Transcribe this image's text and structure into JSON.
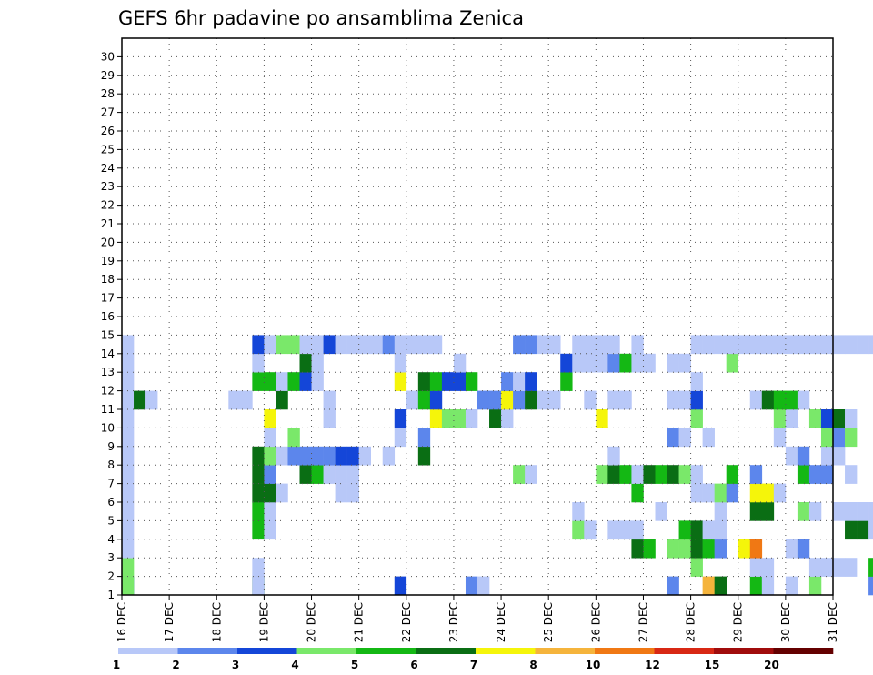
{
  "chart_data": {
    "type": "heatmap",
    "title": "GEFS 6hr padavine po ansamblima Zenica",
    "xlabel": "",
    "ylabel": "",
    "x_tick_labels": [
      "16 DEC",
      "17 DEC",
      "18 DEC",
      "19 DEC",
      "20 DEC",
      "21 DEC",
      "22 DEC",
      "23 DEC",
      "24 DEC",
      "25 DEC",
      "26 DEC",
      "27 DEC",
      "28 DEC",
      "29 DEC",
      "30 DEC",
      "31 DEC"
    ],
    "y_tick_labels": [
      "1",
      "2",
      "3",
      "4",
      "5",
      "6",
      "7",
      "8",
      "9",
      "10",
      "11",
      "12",
      "13",
      "14",
      "15",
      "16",
      "17",
      "18",
      "19",
      "20",
      "21",
      "22",
      "23",
      "24",
      "25",
      "26",
      "27",
      "28",
      "29",
      "30"
    ],
    "x_range_days": [
      16,
      31
    ],
    "steps_per_day": 4,
    "members": 30,
    "grid": true,
    "colorbar": {
      "position": "bottom",
      "levels": [
        "1",
        "2",
        "3",
        "4",
        "5",
        "6",
        "7",
        "8",
        "10",
        "12",
        "15",
        "20"
      ],
      "colors": [
        "#b8c8f8",
        "#5c86ec",
        "#1446d8",
        "#7ae86a",
        "#14b814",
        "#0a6e14",
        "#f5f50a",
        "#f5b43c",
        "#f07814",
        "#d82814",
        "#a00c0c",
        "#640000"
      ]
    },
    "cells": [
      [
        0,
        0,
        2
      ],
      [
        0,
        11,
        5
      ],
      [
        0,
        23,
        2
      ],
      [
        0,
        29,
        1
      ],
      [
        0,
        30,
        0
      ],
      [
        0,
        49,
        7
      ],
      [
        0,
        50,
        5
      ],
      [
        0,
        53,
        4
      ],
      [
        0,
        54,
        0
      ],
      [
        0,
        56,
        0
      ],
      [
        0,
        58,
        3
      ],
      [
        0,
        63,
        1
      ],
      [
        0,
        64,
        2
      ],
      [
        0,
        65,
        2
      ],
      [
        0,
        66,
        0
      ],
      [
        0,
        68,
        0
      ],
      [
        0,
        69,
        0
      ],
      [
        0,
        70,
        0
      ],
      [
        0,
        71,
        2
      ],
      [
        0,
        72,
        5
      ],
      [
        0,
        74,
        4
      ],
      [
        0,
        83,
        0
      ],
      [
        0,
        0,
        3
      ],
      [
        0,
        11,
        0
      ],
      [
        0,
        46,
        1
      ],
      [
        1,
        0,
        3
      ],
      [
        1,
        11,
        0
      ],
      [
        1,
        48,
        3
      ],
      [
        1,
        53,
        0
      ],
      [
        1,
        54,
        0
      ],
      [
        1,
        58,
        0
      ],
      [
        1,
        59,
        0
      ],
      [
        1,
        60,
        0
      ],
      [
        1,
        61,
        0
      ],
      [
        1,
        63,
        4
      ],
      [
        1,
        64,
        1
      ],
      [
        1,
        74,
        5
      ],
      [
        1,
        75,
        0
      ],
      [
        1,
        76,
        0
      ],
      [
        1,
        77,
        4
      ],
      [
        1,
        78,
        5
      ],
      [
        2,
        0,
        0
      ],
      [
        2,
        43,
        5
      ],
      [
        2,
        44,
        4
      ],
      [
        2,
        46,
        3
      ],
      [
        2,
        47,
        3
      ],
      [
        2,
        48,
        5
      ],
      [
        2,
        49,
        4
      ],
      [
        2,
        50,
        1
      ],
      [
        2,
        52,
        6
      ],
      [
        2,
        53,
        8
      ],
      [
        2,
        56,
        0
      ],
      [
        2,
        57,
        1
      ],
      [
        3,
        0,
        0
      ],
      [
        3,
        11,
        4
      ],
      [
        3,
        12,
        0
      ],
      [
        3,
        38,
        3
      ],
      [
        3,
        39,
        0
      ],
      [
        3,
        41,
        0
      ],
      [
        3,
        42,
        0
      ],
      [
        3,
        43,
        0
      ],
      [
        3,
        47,
        4
      ],
      [
        3,
        48,
        5
      ],
      [
        3,
        49,
        0
      ],
      [
        3,
        50,
        0
      ],
      [
        3,
        61,
        5
      ],
      [
        3,
        62,
        5
      ],
      [
        3,
        63,
        0
      ],
      [
        3,
        64,
        0
      ],
      [
        3,
        65,
        0
      ],
      [
        3,
        66,
        0
      ],
      [
        3,
        67,
        0
      ],
      [
        3,
        68,
        0
      ],
      [
        3,
        70,
        0
      ],
      [
        3,
        71,
        0
      ],
      [
        3,
        72,
        0
      ],
      [
        3,
        73,
        0
      ],
      [
        3,
        74,
        0
      ],
      [
        3,
        75,
        0
      ],
      [
        3,
        76,
        0
      ],
      [
        3,
        77,
        0
      ],
      [
        3,
        78,
        0
      ],
      [
        4,
        0,
        0
      ],
      [
        4,
        11,
        4
      ],
      [
        4,
        12,
        0
      ],
      [
        4,
        38,
        0
      ],
      [
        4,
        45,
        0
      ],
      [
        4,
        50,
        0
      ],
      [
        4,
        53,
        5
      ],
      [
        4,
        54,
        5
      ],
      [
        4,
        57,
        3
      ],
      [
        4,
        58,
        0
      ],
      [
        4,
        60,
        0
      ],
      [
        4,
        61,
        0
      ],
      [
        4,
        62,
        0
      ],
      [
        4,
        63,
        0
      ],
      [
        4,
        64,
        0
      ],
      [
        4,
        70,
        0
      ],
      [
        4,
        71,
        0
      ],
      [
        4,
        72,
        0
      ],
      [
        5,
        0,
        0
      ],
      [
        5,
        11,
        5
      ],
      [
        5,
        12,
        5
      ],
      [
        5,
        13,
        0
      ],
      [
        5,
        18,
        0
      ],
      [
        5,
        19,
        0
      ],
      [
        5,
        43,
        4
      ],
      [
        5,
        48,
        0
      ],
      [
        5,
        49,
        0
      ],
      [
        5,
        50,
        3
      ],
      [
        5,
        51,
        1
      ],
      [
        5,
        53,
        6
      ],
      [
        5,
        54,
        6
      ],
      [
        5,
        55,
        0
      ],
      [
        6,
        0,
        0
      ],
      [
        6,
        11,
        5
      ],
      [
        6,
        12,
        1
      ],
      [
        6,
        15,
        5
      ],
      [
        6,
        16,
        4
      ],
      [
        6,
        17,
        0
      ],
      [
        6,
        18,
        0
      ],
      [
        6,
        19,
        0
      ],
      [
        6,
        33,
        3
      ],
      [
        6,
        34,
        0
      ],
      [
        6,
        40,
        3
      ],
      [
        6,
        41,
        5
      ],
      [
        6,
        42,
        4
      ],
      [
        6,
        43,
        0
      ],
      [
        6,
        44,
        5
      ],
      [
        6,
        45,
        4
      ],
      [
        6,
        46,
        5
      ],
      [
        6,
        47,
        3
      ],
      [
        6,
        48,
        0
      ],
      [
        6,
        51,
        4
      ],
      [
        6,
        53,
        1
      ],
      [
        6,
        57,
        4
      ],
      [
        6,
        58,
        1
      ],
      [
        6,
        59,
        1
      ],
      [
        6,
        61,
        0
      ],
      [
        7,
        0,
        0
      ],
      [
        7,
        11,
        5
      ],
      [
        7,
        12,
        3
      ],
      [
        7,
        13,
        0
      ],
      [
        7,
        14,
        1
      ],
      [
        7,
        15,
        1
      ],
      [
        7,
        16,
        1
      ],
      [
        7,
        17,
        1
      ],
      [
        7,
        18,
        2
      ],
      [
        7,
        19,
        2
      ],
      [
        7,
        20,
        0
      ],
      [
        7,
        22,
        0
      ],
      [
        7,
        25,
        5
      ],
      [
        7,
        41,
        0
      ],
      [
        7,
        56,
        0
      ],
      [
        7,
        57,
        1
      ],
      [
        7,
        59,
        0
      ],
      [
        7,
        60,
        0
      ],
      [
        8,
        0,
        0
      ],
      [
        8,
        12,
        0
      ],
      [
        8,
        14,
        3
      ],
      [
        8,
        23,
        0
      ],
      [
        8,
        25,
        1
      ],
      [
        8,
        46,
        1
      ],
      [
        8,
        47,
        0
      ],
      [
        8,
        49,
        0
      ],
      [
        8,
        55,
        0
      ],
      [
        8,
        59,
        3
      ],
      [
        8,
        60,
        1
      ],
      [
        8,
        61,
        3
      ],
      [
        9,
        0,
        0
      ],
      [
        9,
        12,
        6
      ],
      [
        9,
        17,
        0
      ],
      [
        9,
        23,
        2
      ],
      [
        9,
        26,
        6
      ],
      [
        9,
        27,
        3
      ],
      [
        9,
        28,
        3
      ],
      [
        9,
        29,
        0
      ],
      [
        9,
        31,
        5
      ],
      [
        9,
        32,
        0
      ],
      [
        9,
        40,
        6
      ],
      [
        9,
        48,
        3
      ],
      [
        9,
        55,
        3
      ],
      [
        9,
        56,
        0
      ],
      [
        9,
        58,
        3
      ],
      [
        9,
        59,
        2
      ],
      [
        9,
        60,
        5
      ],
      [
        9,
        61,
        0
      ],
      [
        10,
        0,
        0
      ],
      [
        10,
        1,
        5
      ],
      [
        10,
        2,
        0
      ],
      [
        10,
        9,
        0
      ],
      [
        10,
        10,
        0
      ],
      [
        10,
        13,
        5
      ],
      [
        10,
        17,
        0
      ],
      [
        10,
        24,
        0
      ],
      [
        10,
        25,
        4
      ],
      [
        10,
        26,
        2
      ],
      [
        10,
        30,
        1
      ],
      [
        10,
        31,
        1
      ],
      [
        10,
        32,
        6
      ],
      [
        10,
        33,
        1
      ],
      [
        10,
        34,
        5
      ],
      [
        10,
        35,
        0
      ],
      [
        10,
        36,
        0
      ],
      [
        10,
        39,
        0
      ],
      [
        10,
        41,
        0
      ],
      [
        10,
        42,
        0
      ],
      [
        10,
        46,
        0
      ],
      [
        10,
        47,
        0
      ],
      [
        10,
        48,
        2
      ],
      [
        10,
        53,
        0
      ],
      [
        10,
        54,
        5
      ],
      [
        10,
        55,
        4
      ],
      [
        10,
        56,
        4
      ],
      [
        10,
        57,
        0
      ],
      [
        11,
        0,
        0
      ],
      [
        11,
        11,
        4
      ],
      [
        11,
        12,
        4
      ],
      [
        11,
        13,
        0
      ],
      [
        11,
        14,
        4
      ],
      [
        11,
        15,
        2
      ],
      [
        11,
        16,
        0
      ],
      [
        11,
        23,
        6
      ],
      [
        11,
        25,
        5
      ],
      [
        11,
        26,
        4
      ],
      [
        11,
        27,
        2
      ],
      [
        11,
        28,
        2
      ],
      [
        11,
        29,
        4
      ],
      [
        11,
        32,
        1
      ],
      [
        11,
        33,
        0
      ],
      [
        11,
        34,
        2
      ],
      [
        11,
        37,
        4
      ],
      [
        11,
        48,
        0
      ],
      [
        12,
        0,
        0
      ],
      [
        12,
        11,
        0
      ],
      [
        12,
        15,
        5
      ],
      [
        12,
        16,
        0
      ],
      [
        12,
        23,
        0
      ],
      [
        12,
        28,
        0
      ],
      [
        12,
        37,
        2
      ],
      [
        12,
        38,
        0
      ],
      [
        12,
        39,
        0
      ],
      [
        12,
        40,
        0
      ],
      [
        12,
        41,
        1
      ],
      [
        12,
        42,
        4
      ],
      [
        12,
        43,
        0
      ],
      [
        12,
        44,
        0
      ],
      [
        12,
        46,
        0
      ],
      [
        12,
        47,
        0
      ],
      [
        12,
        51,
        3
      ],
      [
        13,
        0,
        0
      ],
      [
        13,
        11,
        2
      ],
      [
        13,
        12,
        0
      ],
      [
        13,
        13,
        3
      ],
      [
        13,
        14,
        3
      ],
      [
        13,
        15,
        0
      ],
      [
        13,
        16,
        0
      ],
      [
        13,
        17,
        2
      ],
      [
        13,
        18,
        0
      ],
      [
        13,
        19,
        0
      ],
      [
        13,
        20,
        0
      ],
      [
        13,
        21,
        0
      ],
      [
        13,
        22,
        1
      ],
      [
        13,
        23,
        0
      ],
      [
        13,
        24,
        0
      ],
      [
        13,
        25,
        0
      ],
      [
        13,
        26,
        0
      ],
      [
        13,
        33,
        1
      ],
      [
        13,
        34,
        1
      ],
      [
        13,
        35,
        0
      ],
      [
        13,
        36,
        0
      ],
      [
        13,
        38,
        0
      ],
      [
        13,
        39,
        0
      ],
      [
        13,
        40,
        0
      ],
      [
        13,
        41,
        0
      ],
      [
        13,
        43,
        0
      ],
      [
        13,
        48,
        0
      ],
      [
        13,
        49,
        0
      ],
      [
        13,
        50,
        0
      ],
      [
        13,
        51,
        0
      ],
      [
        13,
        52,
        0
      ],
      [
        13,
        53,
        0
      ],
      [
        13,
        54,
        0
      ],
      [
        13,
        55,
        0
      ],
      [
        13,
        56,
        0
      ],
      [
        13,
        57,
        0
      ],
      [
        13,
        58,
        0
      ],
      [
        13,
        59,
        0
      ],
      [
        13,
        60,
        0
      ],
      [
        13,
        61,
        0
      ],
      [
        13,
        62,
        0
      ],
      [
        13,
        63,
        0
      ],
      [
        13,
        64,
        0
      ],
      [
        13,
        65,
        0
      ],
      [
        13,
        66,
        0
      ],
      [
        13,
        67,
        0
      ],
      [
        13,
        68,
        0
      ],
      [
        13,
        69,
        0
      ],
      [
        13,
        70,
        0
      ],
      [
        13,
        71,
        0
      ],
      [
        13,
        72,
        0
      ],
      [
        13,
        73,
        0
      ],
      [
        13,
        74,
        0
      ],
      [
        13,
        75,
        0
      ],
      [
        13,
        76,
        0
      ],
      [
        13,
        77,
        0
      ],
      [
        13,
        78,
        0
      ],
      [
        13,
        79,
        0
      ],
      [
        13,
        80,
        0
      ],
      [
        13,
        81,
        0
      ],
      [
        13,
        82,
        0
      ],
      [
        13,
        83,
        0
      ]
    ],
    "cells_note": "each cell: [member-1, 6h step since 16 DEC 00Z, color level index]"
  }
}
